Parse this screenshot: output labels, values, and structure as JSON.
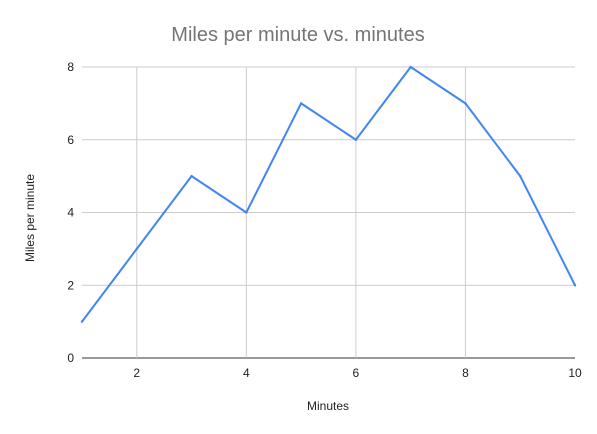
{
  "chart_data": {
    "type": "line",
    "title": "Miles per minute vs. minutes",
    "xlabel": "Minutes",
    "ylabel": "Miles per minute",
    "xlim": [
      1,
      10
    ],
    "ylim": [
      0,
      8
    ],
    "x_ticks": [
      2,
      4,
      6,
      8,
      10
    ],
    "y_ticks": [
      0,
      2,
      4,
      6,
      8
    ],
    "grid": true,
    "series": [
      {
        "x": [
          1,
          2,
          3,
          4,
          5,
          6,
          7,
          8,
          9,
          10
        ],
        "values": [
          1,
          3,
          5,
          4,
          7,
          6,
          8,
          7,
          5,
          2
        ],
        "color": "#4285f4"
      }
    ]
  }
}
